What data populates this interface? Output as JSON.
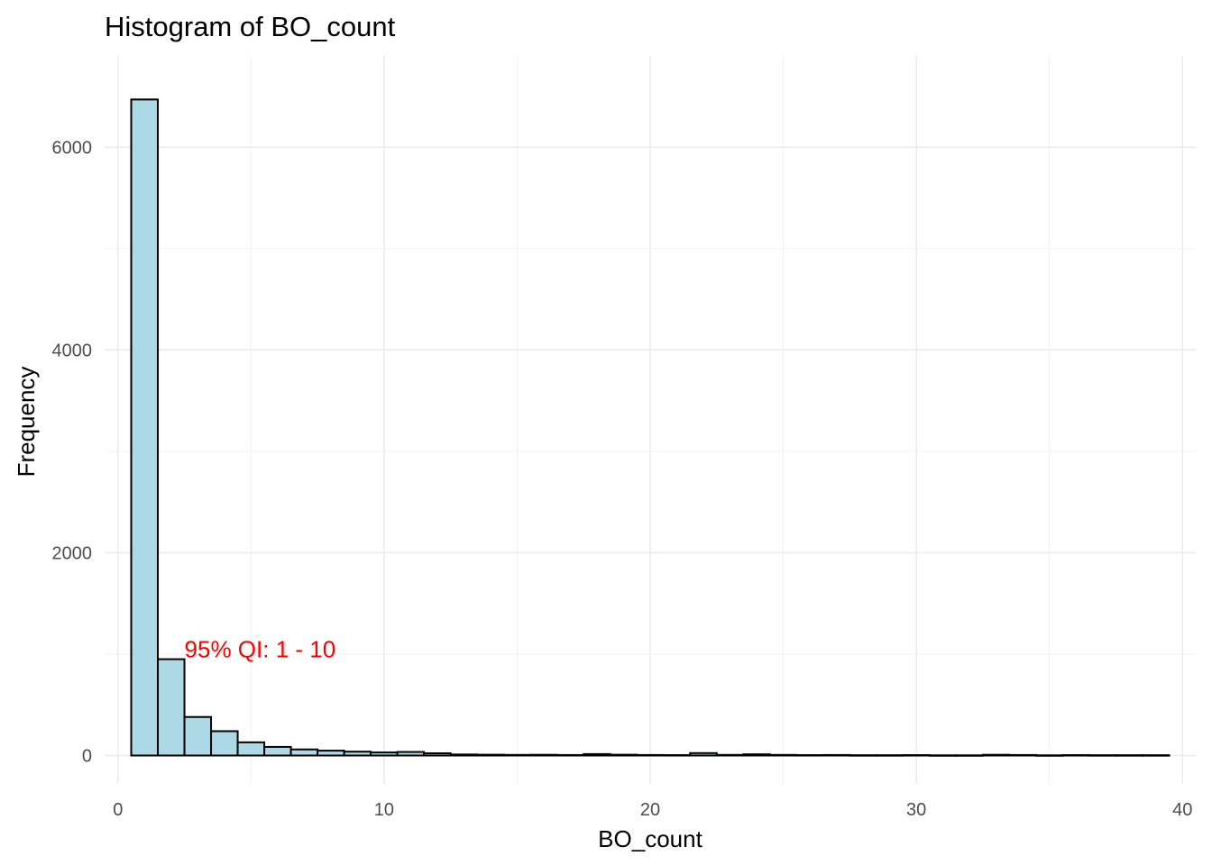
{
  "chart_data": {
    "type": "bar",
    "title": "Histogram of BO_count",
    "xlabel": "BO_count",
    "ylabel": "Frequency",
    "xlim": [
      -0.5,
      40.5
    ],
    "ylim": [
      -280,
      6900
    ],
    "x_ticks": [
      0,
      10,
      20,
      30,
      40
    ],
    "x_tick_labels": [
      "0",
      "10",
      "20",
      "30",
      "40"
    ],
    "x_minor_ticks": [
      5,
      15,
      25,
      35
    ],
    "y_ticks": [
      0,
      2000,
      4000,
      6000
    ],
    "y_tick_labels": [
      "0",
      "2000",
      "4000",
      "6000"
    ],
    "y_minor_ticks": [
      1000,
      3000,
      5000
    ],
    "grid": true,
    "bin_width": 1,
    "bin_centers": [
      1,
      2,
      3,
      4,
      5,
      6,
      7,
      8,
      9,
      10,
      11,
      12,
      13,
      14,
      15,
      16,
      17,
      18,
      19,
      20,
      21,
      22,
      23,
      24,
      25,
      26,
      27,
      28,
      29,
      30,
      31,
      32,
      33,
      34,
      35,
      36,
      37,
      38,
      39
    ],
    "values": [
      6470,
      950,
      380,
      240,
      130,
      85,
      60,
      48,
      38,
      30,
      35,
      22,
      10,
      8,
      6,
      7,
      5,
      14,
      8,
      5,
      4,
      24,
      6,
      12,
      6,
      4,
      5,
      3,
      3,
      4,
      2,
      2,
      7,
      5,
      2,
      4,
      3,
      3,
      3
    ],
    "fill_color": "#add8e6",
    "edge_color": "#000000",
    "annotation": {
      "text": "95% QI: 1 - 10",
      "x": 2.5,
      "y": 1050,
      "color": "#ff0000"
    }
  }
}
